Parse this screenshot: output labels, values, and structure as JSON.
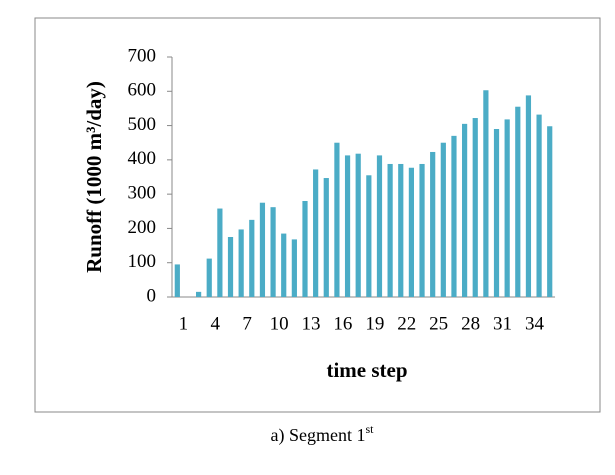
{
  "chart_data": {
    "type": "bar",
    "x_label": "time step",
    "y_label": "Runoff  (1000 m³/day)",
    "caption": "a) Segment 1",
    "caption_superscript": "st",
    "categories": [
      "1",
      null,
      null,
      "4",
      null,
      null,
      "7",
      null,
      null,
      "10",
      null,
      null,
      "13",
      null,
      null,
      "16",
      null,
      null,
      "19",
      null,
      null,
      "22",
      null,
      null,
      "25",
      null,
      null,
      "28",
      null,
      null,
      "31",
      null,
      null,
      "34",
      null,
      null
    ],
    "values": [
      95,
      0,
      15,
      112,
      258,
      175,
      197,
      225,
      275,
      262,
      185,
      168,
      280,
      372,
      347,
      450,
      413,
      418,
      355,
      413,
      388,
      388,
      377,
      388,
      423,
      450,
      470,
      505,
      522,
      603,
      490,
      518,
      555,
      588,
      532,
      498
    ],
    "color": "#4bacc6",
    "ylim": [
      0,
      700
    ],
    "yticks": [
      0,
      100,
      200,
      300,
      400,
      500,
      600,
      700
    ],
    "grid": false
  }
}
